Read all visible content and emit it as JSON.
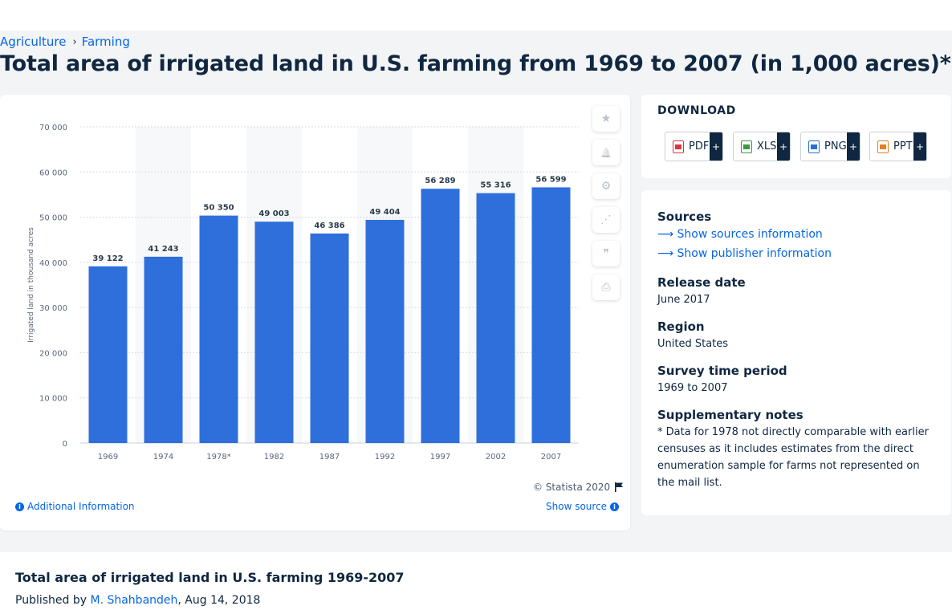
{
  "breadcrumb": [
    {
      "label": "Agriculture"
    },
    {
      "label": "Farming"
    }
  ],
  "page_title": "Total area of irrigated land in U.S. farming from 1969 to 2007 (in 1,000 acres)*",
  "chart_data": {
    "type": "bar",
    "title": "",
    "xlabel": "",
    "ylabel": "Irrigated land in thousand acres",
    "categories": [
      "1969",
      "1974",
      "1978*",
      "1982",
      "1987",
      "1992",
      "1997",
      "2002",
      "2007"
    ],
    "values": [
      39122,
      41243,
      50350,
      49003,
      46386,
      49404,
      56289,
      55316,
      56599
    ],
    "value_labels": [
      "39 122",
      "41 243",
      "50 350",
      "49 003",
      "46 386",
      "49 404",
      "56 289",
      "55 316",
      "56 599"
    ],
    "ylim": [
      0,
      70000
    ],
    "yticks": [
      0,
      10000,
      20000,
      30000,
      40000,
      50000,
      60000,
      70000
    ],
    "ytick_labels": [
      "0",
      "10 000",
      "20 000",
      "30 000",
      "40 000",
      "50 000",
      "60 000",
      "70 000"
    ],
    "grid": true,
    "bar_color": "#2f6fdc"
  },
  "chart_footer": {
    "copyright": "© Statista 2020",
    "additional_info": "Additional Information",
    "show_source": "Show source"
  },
  "tools": [
    {
      "name": "favorite",
      "icon": "star-icon",
      "glyph": "★"
    },
    {
      "name": "alert",
      "icon": "bell-icon",
      "glyph": "🔔"
    },
    {
      "name": "settings",
      "icon": "gear-icon",
      "glyph": "⚙"
    },
    {
      "name": "share",
      "icon": "share-icon",
      "glyph": "⋰"
    },
    {
      "name": "cite",
      "icon": "quote-icon",
      "glyph": "❞"
    },
    {
      "name": "print",
      "icon": "print-icon",
      "glyph": "⎙"
    }
  ],
  "download": {
    "title": "DOWNLOAD",
    "buttons": [
      {
        "label": "PDF",
        "icon": "pdf-file-icon",
        "color": "#d9363e",
        "plus": "+"
      },
      {
        "label": "XLS",
        "icon": "xls-file-icon",
        "color": "#3c9a3c",
        "plus": "+"
      },
      {
        "label": "PNG",
        "icon": "png-file-icon",
        "color": "#2a6fcf",
        "plus": "+"
      },
      {
        "label": "PPT",
        "icon": "ppt-file-icon",
        "color": "#e67e22",
        "plus": "+"
      }
    ]
  },
  "meta": {
    "sources_heading": "Sources",
    "show_sources": "Show sources information",
    "show_publisher": "Show publisher information",
    "release_heading": "Release date",
    "release_value": "June 2017",
    "region_heading": "Region",
    "region_value": "United States",
    "survey_heading": "Survey time period",
    "survey_value": "1969 to 2007",
    "supp_heading": "Supplementary notes",
    "supp_value": "* Data for 1978 not directly comparable with earlier censuses as it includes estimates from the direct enumeration sample for farms not represented on the mail list."
  },
  "bottom": {
    "title": "Total area of irrigated land in U.S. farming 1969-2007",
    "published_by": "Published by",
    "author": "M. Shahbandeh",
    "date": ", Aug 14, 2018"
  },
  "colors": {
    "accent": "#0666e5",
    "navy": "#0f2740"
  }
}
